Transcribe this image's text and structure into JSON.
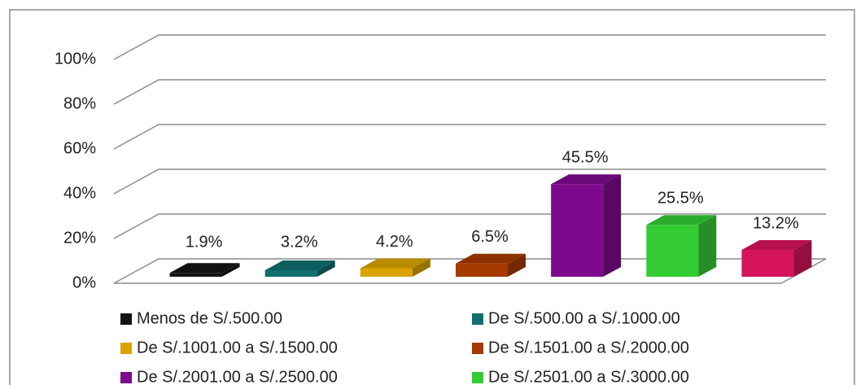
{
  "chart_data": {
    "type": "bar",
    "categories": [
      "Menos de S/.500.00",
      "De S/.500.00 a S/.1000.00",
      "De S/.1001.00 a S/.1500.00",
      "De S/.1501.00 a S/.2000.00",
      "De S/.2001.00 a S/.2500.00",
      "De S/.2501.00 a S/.3000.00",
      null
    ],
    "values": [
      1.9,
      3.2,
      4.2,
      6.5,
      45.5,
      25.5,
      13.2
    ],
    "value_labels": [
      "1.9%",
      "3.2%",
      "4.2%",
      "6.5%",
      "45.5%",
      "25.5%",
      "13.2%"
    ],
    "colors": [
      "#141414",
      "#0f6e6e",
      "#d9a400",
      "#a63a00",
      "#7d0a8c",
      "#33cc33",
      "#d6145c"
    ],
    "ylim": [
      0,
      100
    ],
    "yticks": [
      {
        "value": 0,
        "label": "0%"
      },
      {
        "value": 20,
        "label": "20%"
      },
      {
        "value": 40,
        "label": "40%"
      },
      {
        "value": 60,
        "label": "60%"
      },
      {
        "value": 80,
        "label": "80%"
      },
      {
        "value": 100,
        "label": "100%"
      }
    ],
    "grid": true,
    "legend": "bottom"
  }
}
